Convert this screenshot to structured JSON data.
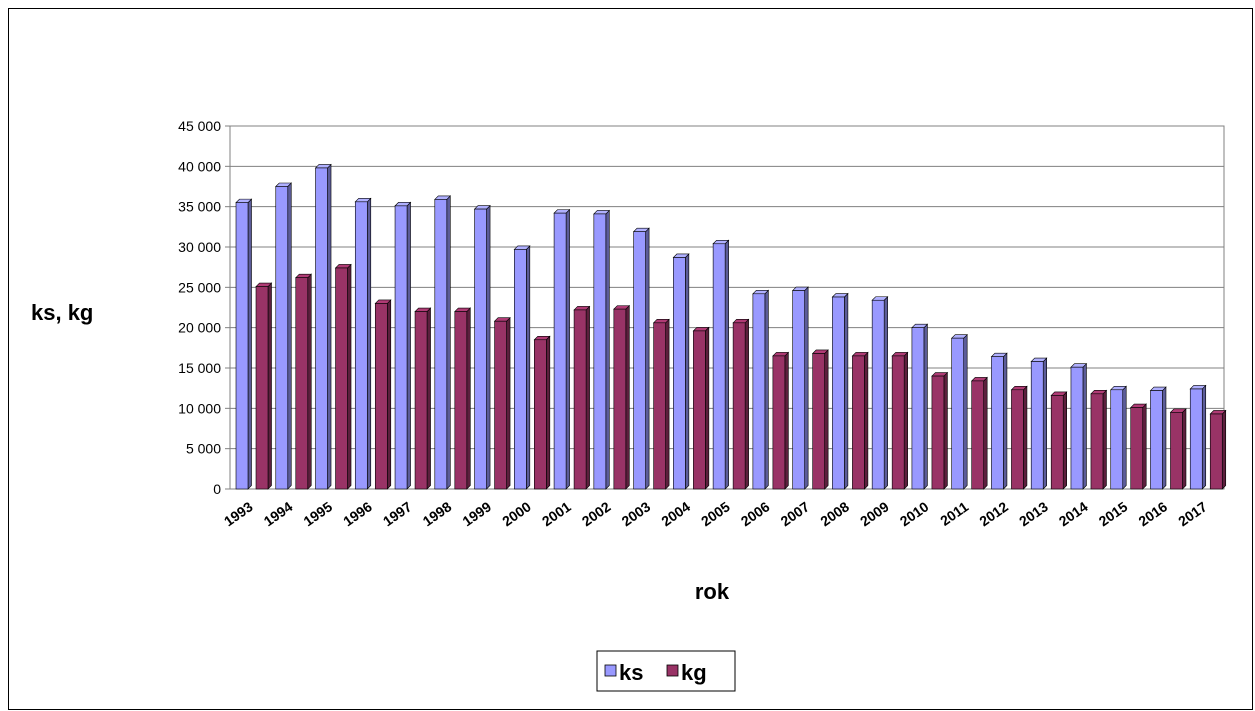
{
  "chart_data": {
    "type": "bar",
    "title": "",
    "xlabel": "rok",
    "ylabel": "ks, kg",
    "ylim": [
      0,
      45000
    ],
    "yticks": [
      "0",
      "5 000",
      "10 000",
      "15 000",
      "20 000",
      "25 000",
      "30 000",
      "35 000",
      "40 000",
      "45 000"
    ],
    "grid": true,
    "legend_position": "bottom",
    "categories": [
      "1993",
      "1994",
      "1995",
      "1996",
      "1997",
      "1998",
      "1999",
      "2000",
      "2001",
      "2002",
      "2003",
      "2004",
      "2005",
      "2006",
      "2007",
      "2008",
      "2009",
      "2010",
      "2011",
      "2012",
      "2013",
      "2014",
      "2015",
      "2016",
      "2017"
    ],
    "series": [
      {
        "name": "ks",
        "color": "#9999FF",
        "values": [
          35500,
          37500,
          39800,
          35600,
          35100,
          35900,
          34700,
          29700,
          34200,
          34100,
          31900,
          28700,
          30400,
          24200,
          24600,
          23800,
          23400,
          20000,
          18700,
          16400,
          15800,
          15100,
          12300,
          12200,
          12400
        ]
      },
      {
        "name": "kg",
        "color": "#993366",
        "values": [
          25100,
          26200,
          27400,
          23000,
          22000,
          22000,
          20800,
          18500,
          22200,
          22300,
          20600,
          19600,
          20600,
          16500,
          16800,
          16500,
          16500,
          14000,
          13400,
          12300,
          11600,
          11800,
          10100,
          9500,
          9300
        ]
      }
    ]
  }
}
